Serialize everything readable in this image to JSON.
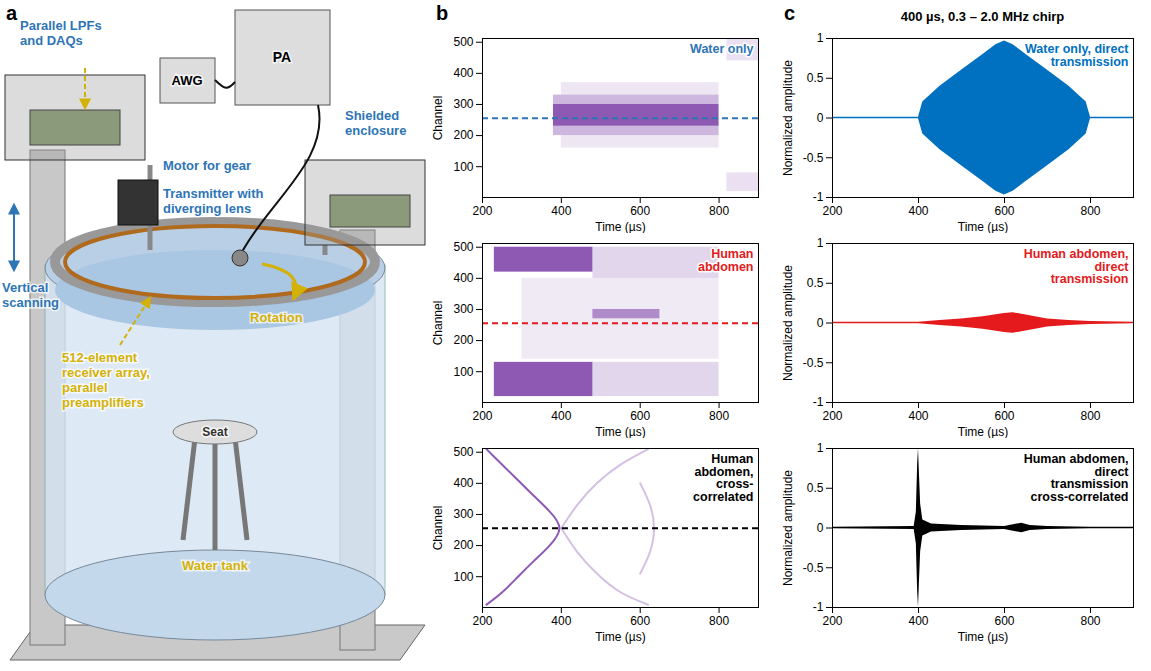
{
  "diagram": {
    "panel": "a",
    "labels": [
      {
        "text": "Parallel LPFs and DAQs",
        "color": "#2e75b6"
      },
      {
        "text": "AWG",
        "color": "#000000"
      },
      {
        "text": "PA",
        "color": "#000000"
      },
      {
        "text": "Shielded enclosure",
        "color": "#2e75b6"
      },
      {
        "text": "Motor for gear",
        "color": "#2e75b6"
      },
      {
        "text": "Transmitter with diverging lens",
        "color": "#2e75b6"
      },
      {
        "text": "Rotation",
        "color": "#d4b106"
      },
      {
        "text": "Vertical scanning",
        "color": "#2e75b6"
      },
      {
        "text": "512-element receiver array, parallel preamplifiers",
        "color": "#d4b106"
      },
      {
        "text": "Seat",
        "color": "#333333"
      },
      {
        "text": "Water tank",
        "color": "#d4b106"
      }
    ]
  },
  "chart_data": [
    {
      "panel": "b",
      "type": "heatmap",
      "x_label": "Time (µs)",
      "y_label": "Channel",
      "xlim": [
        200,
        900
      ],
      "ylim": [
        1,
        512
      ],
      "xticks": [
        200,
        400,
        600,
        800
      ],
      "yticks": [
        100,
        200,
        300,
        400,
        500
      ],
      "color": "#7030a0",
      "annotation": {
        "text": "Water only",
        "color": "#2e75b6"
      },
      "reference_line": {
        "channel": 256,
        "color": "#2e75b6",
        "line_style": "dashed"
      },
      "regions": [
        {
          "time_start": 380,
          "time_end": 800,
          "channel_start": 230,
          "channel_end": 300,
          "intensity": 0.8
        },
        {
          "time_start": 380,
          "time_end": 800,
          "channel_start": 200,
          "channel_end": 230,
          "intensity": 0.35
        },
        {
          "time_start": 380,
          "time_end": 800,
          "channel_start": 300,
          "channel_end": 330,
          "intensity": 0.35
        },
        {
          "time_start": 400,
          "time_end": 800,
          "channel_start": 330,
          "channel_end": 370,
          "intensity": 0.12
        },
        {
          "time_start": 400,
          "time_end": 800,
          "channel_start": 160,
          "channel_end": 200,
          "intensity": 0.12
        },
        {
          "time_start": 820,
          "time_end": 900,
          "channel_start": 440,
          "channel_end": 512,
          "intensity": 0.15
        },
        {
          "time_start": 820,
          "time_end": 900,
          "channel_start": 20,
          "channel_end": 80,
          "intensity": 0.15
        }
      ]
    },
    {
      "type": "heatmap",
      "x_label": "Time (µs)",
      "y_label": "Channel",
      "xlim": [
        200,
        900
      ],
      "ylim": [
        1,
        512
      ],
      "xticks": [
        200,
        400,
        600,
        800
      ],
      "yticks": [
        100,
        200,
        300,
        400,
        500
      ],
      "color": "#7030a0",
      "annotation": {
        "text": "Human abdomen",
        "color": "#e41a1c"
      },
      "reference_line": {
        "channel": 256,
        "color": "#e41a1c",
        "line_style": "dashed"
      },
      "regions": [
        {
          "time_start": 230,
          "time_end": 480,
          "channel_start": 420,
          "channel_end": 500,
          "intensity": 0.8
        },
        {
          "time_start": 230,
          "time_end": 480,
          "channel_start": 20,
          "channel_end": 130,
          "intensity": 0.8
        },
        {
          "time_start": 480,
          "time_end": 800,
          "channel_start": 400,
          "channel_end": 500,
          "intensity": 0.2
        },
        {
          "time_start": 480,
          "time_end": 800,
          "channel_start": 20,
          "channel_end": 130,
          "intensity": 0.2
        },
        {
          "time_start": 480,
          "time_end": 650,
          "channel_start": 270,
          "channel_end": 300,
          "intensity": 0.5
        },
        {
          "time_start": 300,
          "time_end": 800,
          "channel_start": 140,
          "channel_end": 400,
          "intensity": 0.1
        }
      ]
    },
    {
      "type": "curves",
      "x_label": "Time (µs)",
      "y_label": "Channel",
      "xlim": [
        200,
        900
      ],
      "ylim": [
        1,
        512
      ],
      "xticks": [
        200,
        400,
        600,
        800
      ],
      "yticks": [
        100,
        200,
        300,
        400,
        500
      ],
      "color": "#7030a0",
      "annotation": {
        "text": "Human abdomen, cross-correlated",
        "color": "#000000"
      },
      "reference_line": {
        "channel": 256,
        "color": "#000000",
        "line_style": "dashed"
      },
      "curves": [
        {
          "channels": [
            510,
            460,
            410,
            360,
            310,
            256,
            200,
            150,
            100,
            50,
            10
          ],
          "times": [
            210,
            250,
            290,
            330,
            370,
            395,
            370,
            330,
            290,
            250,
            210
          ],
          "intensity": 0.8
        },
        {
          "channels": [
            256,
            330,
            400,
            460,
            510
          ],
          "times": [
            400,
            440,
            490,
            550,
            620
          ],
          "intensity": 0.3
        },
        {
          "channels": [
            256,
            180,
            110,
            50,
            10
          ],
          "times": [
            400,
            440,
            490,
            550,
            620
          ],
          "intensity": 0.3
        },
        {
          "channels": [
            400,
            330,
            256,
            180,
            110
          ],
          "times": [
            600,
            625,
            635,
            625,
            600
          ],
          "intensity": 0.3
        }
      ]
    },
    {
      "panel": "c",
      "type": "waveform",
      "title": "400 µs, 0.3 – 2.0 MHz chirp",
      "x_label": "Time (µs)",
      "y_label": "Normalized amplitude",
      "xlim": [
        200,
        900
      ],
      "ylim": [
        -1,
        1
      ],
      "xticks": [
        200,
        400,
        600,
        800
      ],
      "yticks": [
        -1,
        -0.5,
        0,
        0.5,
        1
      ],
      "color": "#0070c0",
      "annotation": {
        "text": "Water only, direct transmission",
        "color": "#0070c0"
      },
      "time": [
        200,
        400,
        410,
        450,
        500,
        550,
        580,
        600,
        620,
        650,
        700,
        750,
        790,
        800,
        900
      ],
      "envelope": [
        0.01,
        0.01,
        0.2,
        0.4,
        0.6,
        0.8,
        0.92,
        0.97,
        0.92,
        0.8,
        0.6,
        0.4,
        0.2,
        0.01,
        0.01
      ]
    },
    {
      "type": "waveform",
      "x_label": "Time (µs)",
      "y_label": "Normalized amplitude",
      "xlim": [
        200,
        900
      ],
      "ylim": [
        -1,
        1
      ],
      "xticks": [
        200,
        400,
        600,
        800
      ],
      "yticks": [
        -1,
        -0.5,
        0,
        0.5,
        1
      ],
      "color": "#e41a1c",
      "annotation": {
        "text": "Human abdomen, direct transmission",
        "color": "#e41a1c"
      },
      "time": [
        200,
        400,
        450,
        500,
        550,
        600,
        620,
        650,
        700,
        750,
        800,
        900
      ],
      "envelope": [
        0.01,
        0.01,
        0.03,
        0.05,
        0.08,
        0.12,
        0.13,
        0.1,
        0.05,
        0.03,
        0.02,
        0.01
      ]
    },
    {
      "type": "waveform",
      "x_label": "Time (µs)",
      "y_label": "Normalized amplitude",
      "xlim": [
        200,
        900
      ],
      "ylim": [
        -1,
        1
      ],
      "xticks": [
        200,
        400,
        600,
        800
      ],
      "yticks": [
        -1,
        -0.5,
        0,
        0.5,
        1
      ],
      "color": "#000000",
      "annotation": {
        "text": "Human abdomen, direct transmission cross-correlated",
        "color": "#000000"
      },
      "time": [
        200,
        390,
        395,
        398,
        400,
        402,
        405,
        410,
        430,
        500,
        600,
        640,
        660,
        700,
        800,
        900
      ],
      "envelope": [
        0.01,
        0.02,
        0.2,
        0.8,
        1,
        0.7,
        0.3,
        0.1,
        0.05,
        0.03,
        0.02,
        0.06,
        0.03,
        0.02,
        0.01,
        0.01
      ]
    }
  ]
}
